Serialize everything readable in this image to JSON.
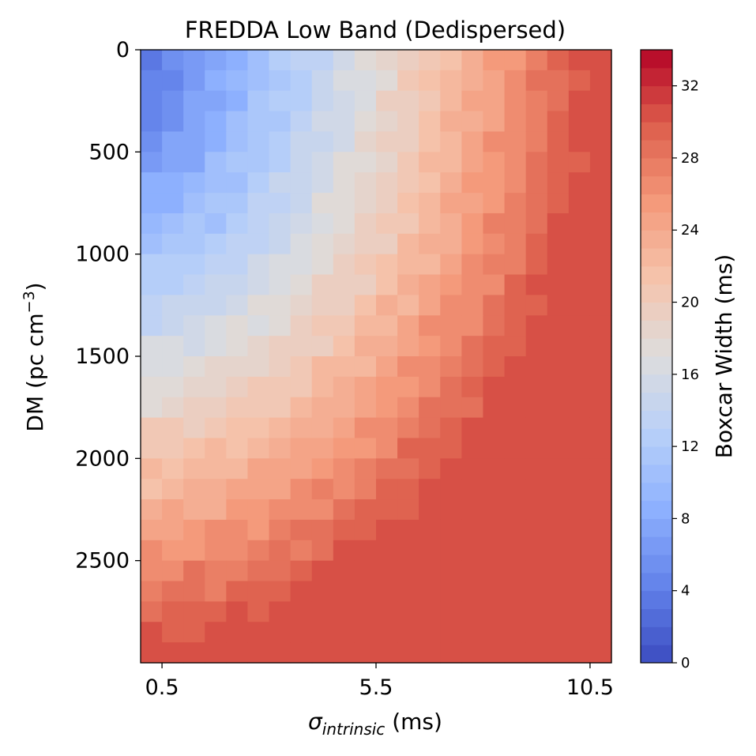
{
  "chart_data": {
    "type": "heatmap",
    "title": "FREDDA Low Band (Dedispersed)",
    "xlabel": {
      "symbol": "σ",
      "subscript": "intrinsic",
      "unit": " (ms)"
    },
    "ylabel": {
      "main": "DM (pc cm",
      "superscript": "−3",
      "close": ")"
    },
    "x_range_ms": [
      0.0,
      11.0
    ],
    "x_ticks": [
      {
        "value": 0.5,
        "label": "0.5"
      },
      {
        "value": 5.5,
        "label": "5.5"
      },
      {
        "value": 10.5,
        "label": "10.5"
      }
    ],
    "y_range_dm": [
      0,
      3000
    ],
    "y_inverted": true,
    "y_ticks": [
      {
        "value": 0,
        "label": "0"
      },
      {
        "value": 500,
        "label": "500"
      },
      {
        "value": 1000,
        "label": "1000"
      },
      {
        "value": 1500,
        "label": "1500"
      },
      {
        "value": 2000,
        "label": "2000"
      },
      {
        "value": 2500,
        "label": "2500"
      }
    ],
    "grid_nx": 22,
    "grid_ny": 30,
    "cell_width_ms": 0.5,
    "cell_height_dm": 100,
    "colormap": "coolwarm",
    "colorbar": {
      "label": "Boxcar Width (ms)",
      "range": [
        0,
        34
      ],
      "levels": 34,
      "ticks": [
        {
          "value": 0,
          "label": "0"
        },
        {
          "value": 4,
          "label": "4"
        },
        {
          "value": 8,
          "label": "8"
        },
        {
          "value": 12,
          "label": "12"
        },
        {
          "value": 16,
          "label": "16"
        },
        {
          "value": 20,
          "label": "20"
        },
        {
          "value": 24,
          "label": "24"
        },
        {
          "value": 28,
          "label": "28"
        },
        {
          "value": 32,
          "label": "32"
        }
      ]
    },
    "value_model": "boxcar width estimated per cell (ms) ≈ sqrt((3.0 + 2.65·σ)^2 + (0.0104·DM)^2), clipped to 30; x = σ_intrinsic cell center (ms), y = DM cell center (pc cm^-3)"
  }
}
